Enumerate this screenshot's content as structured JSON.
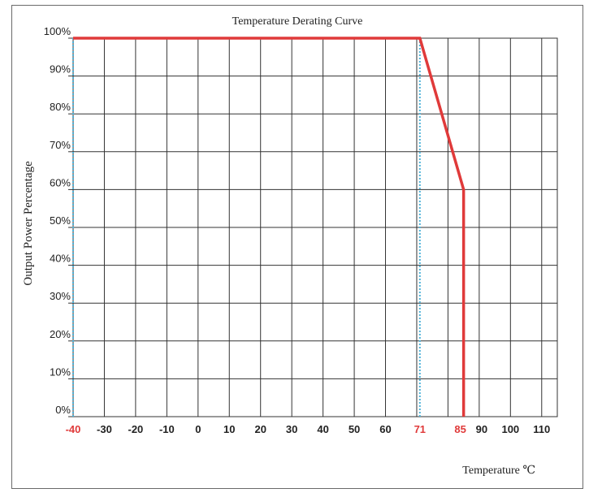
{
  "chart_data": {
    "type": "line",
    "title": "Temperature Derating Curve",
    "xlabel": "Temperature ℃",
    "ylabel": "Output Power Percentage",
    "xlim": [
      -40,
      115
    ],
    "ylim": [
      0,
      100
    ],
    "grid": true,
    "x_ticks": [
      "-40",
      "-30",
      "-20",
      "-10",
      "0",
      "10",
      "20",
      "30",
      "40",
      "50",
      "60",
      "71",
      "85",
      "90",
      "100",
      "110"
    ],
    "x_tick_values": [
      -40,
      -30,
      -20,
      -10,
      0,
      10,
      20,
      30,
      40,
      50,
      60,
      71,
      85,
      90,
      100,
      110
    ],
    "highlighted_x_ticks": [
      "-40",
      "71",
      "85"
    ],
    "y_ticks": [
      "0%",
      "10%",
      "20%",
      "30%",
      "40%",
      "50%",
      "60%",
      "70%",
      "80%",
      "90%",
      "100%"
    ],
    "y_tick_values": [
      0,
      10,
      20,
      30,
      40,
      50,
      60,
      70,
      80,
      90,
      100
    ],
    "series": [
      {
        "x": [
          -40,
          71,
          85,
          85
        ],
        "y": [
          100,
          100,
          60,
          0
        ],
        "color": "#e03a3a"
      }
    ],
    "reference_lines": [
      {
        "x": -40,
        "style": "dotted",
        "color": "#4fb3d9"
      },
      {
        "x": 71,
        "style": "dotted",
        "color": "#4fb3d9"
      }
    ],
    "colors": {
      "grid": "#333333",
      "highlight_tick": "#e03a3a",
      "tick": "#222222"
    }
  }
}
